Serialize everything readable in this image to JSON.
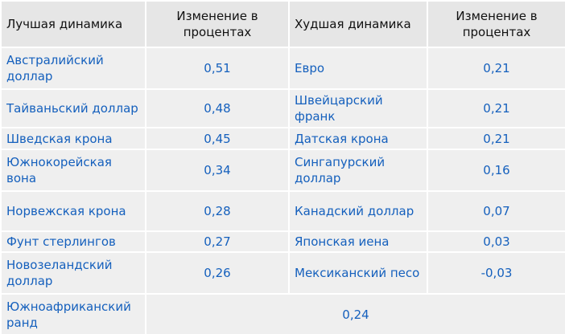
{
  "table": {
    "header": [
      "Лучшая динамика",
      "Изменение в процентах",
      "Худшая динамика",
      "Изменение в процентах"
    ],
    "rows": [
      [
        "Австралийский доллар",
        "0,51",
        "Евро",
        "0,21"
      ],
      [
        "Тайваньский доллар",
        "0,48",
        "Швейцарский франк",
        "0,21"
      ],
      [
        "Шведская крона",
        "0,45",
        "Датская крона",
        "0,21"
      ],
      [
        "Южнокорейская вона",
        "0,34",
        "Сингапурский доллар",
        "0,16"
      ],
      [
        "Норвежская крона",
        "0,28",
        "Канадский доллар",
        "0,07"
      ],
      [
        "Фунт стерлингов",
        "0,27",
        "Японская иена",
        "0,03"
      ],
      [
        "Новозеландский доллар",
        "0,26",
        "Мексиканский песо",
        "-0,03"
      ],
      [
        "Южноафриканский ранд",
        "0,24"
      ]
    ]
  }
}
